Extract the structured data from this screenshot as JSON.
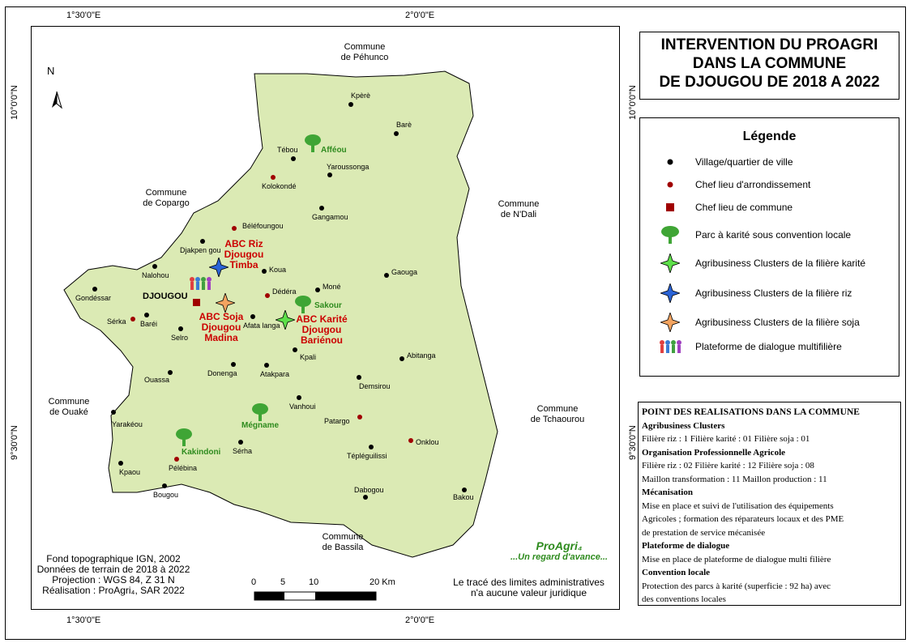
{
  "coords": {
    "top_left": "1°30'0\"E",
    "top_right": "2°0'0\"E",
    "bottom_left": "1°30'0\"E",
    "bottom_right": "2°0'0\"E",
    "left_top": "10°0'0\"N",
    "left_bottom": "9°30'0\"N",
    "right_top": "10°0'0\"N",
    "right_bottom": "9°30'0\"N"
  },
  "title": [
    "INTERVENTION DU PROAGRI",
    "DANS LA COMMUNE",
    "DE DJOUGOU DE 2018 A 2022"
  ],
  "legend": {
    "title": "Légende",
    "items": [
      {
        "label": "Village/quartier de ville",
        "icon": "village-dot"
      },
      {
        "label": "Chef lieu d'arrondissement",
        "icon": "arrondissement-dot"
      },
      {
        "label": "Chef lieu de commune",
        "icon": "commune-square"
      },
      {
        "label": "Parc à karité sous convention locale",
        "icon": "tree-icon"
      },
      {
        "label": "Agribusiness Clusters de la filière karité",
        "icon": "green-star"
      },
      {
        "label": "Agribusiness Clusters de la filière riz",
        "icon": "blue-star"
      },
      {
        "label": "Agribusiness Clusters de la filière soja",
        "icon": "orange-star"
      },
      {
        "label": "Plateforme de dialogue multifilière",
        "icon": "people-icon"
      }
    ]
  },
  "realisations": {
    "title": "POINT DES REALISATIONS DANS LA COMMUNE",
    "lines": [
      {
        "text": "Agribusiness Clusters",
        "bold": true
      },
      {
        "text": "Filière riz : 1   Filière karité : 01  Filière soja : 01",
        "bold": false
      },
      {
        "text": "Organisation Professionnelle Agricole",
        "bold": true
      },
      {
        "text": "Filière riz : 02   Filière karité : 12  Filière soja : 08",
        "bold": false
      },
      {
        "text": "Maillon transformation : 11   Maillon production : 11",
        "bold": false
      },
      {
        "text": "Mécanisation",
        "bold": true
      },
      {
        "text": "Mise en place et suivi de l'utilisation des équipements",
        "bold": false
      },
      {
        "text": "Agricoles ; formation des réparateurs locaux et des PME",
        "bold": false
      },
      {
        "text": "de prestation de service mécanisée",
        "bold": false
      },
      {
        "text": "Plateforme de dialogue",
        "bold": true
      },
      {
        "text": "Mise en place de plateforme de dialogue multi filière",
        "bold": false
      },
      {
        "text": "Convention locale",
        "bold": true
      },
      {
        "text": "Protection des parcs à karité (superficie : 92 ha) avec",
        "bold": false
      },
      {
        "text": "des conventions locales",
        "bold": false
      }
    ]
  },
  "communes": [
    {
      "id": "pehunco",
      "text": "Commune\nde Péhunco"
    },
    {
      "id": "copargo",
      "text": "Commune\nde Copargo"
    },
    {
      "id": "ndali",
      "text": "Commune\nde N'Dali"
    },
    {
      "id": "ouake",
      "text": "Commune\nde Ouaké"
    },
    {
      "id": "tchaourou",
      "text": "Commune\nde Tchaourou"
    },
    {
      "id": "bassila",
      "text": "Commune\nde Bassila"
    }
  ],
  "villages": [
    {
      "name": "Kpèrè",
      "type": "village"
    },
    {
      "name": "Barè",
      "type": "village"
    },
    {
      "name": "Tébou",
      "type": "village"
    },
    {
      "name": "Yaroussonga",
      "type": "village"
    },
    {
      "name": "Kolokondé",
      "type": "arrondissement"
    },
    {
      "name": "Gangamou",
      "type": "village"
    },
    {
      "name": "Béléfoungou",
      "type": "arrondissement"
    },
    {
      "name": "Djakpen gou",
      "type": "village"
    },
    {
      "name": "Nalohou",
      "type": "village"
    },
    {
      "name": "Koua",
      "type": "village"
    },
    {
      "name": "Gaouga",
      "type": "village"
    },
    {
      "name": "Gondéssar",
      "type": "village"
    },
    {
      "name": "Dédéra",
      "type": "arrondissement"
    },
    {
      "name": "Moné",
      "type": "village"
    },
    {
      "name": "Sérka",
      "type": "arrondissement"
    },
    {
      "name": "Baréi",
      "type": "village"
    },
    {
      "name": "Afata langa",
      "type": "village"
    },
    {
      "name": "Selro",
      "type": "village"
    },
    {
      "name": "Kpali",
      "type": "village"
    },
    {
      "name": "Abitanga",
      "type": "village"
    },
    {
      "name": "Donenga",
      "type": "village"
    },
    {
      "name": "Atakpara",
      "type": "village"
    },
    {
      "name": "Ouassa",
      "type": "village"
    },
    {
      "name": "Demsirou",
      "type": "village"
    },
    {
      "name": "Vanhoui",
      "type": "village"
    },
    {
      "name": "Patargo",
      "type": "arrondissement"
    },
    {
      "name": "Onklou",
      "type": "arrondissement"
    },
    {
      "name": "Yarakéou",
      "type": "village"
    },
    {
      "name": "Sérha",
      "type": "village"
    },
    {
      "name": "Tépléguilissi",
      "type": "village"
    },
    {
      "name": "Kpaou",
      "type": "village"
    },
    {
      "name": "Pélébina",
      "type": "arrondissement"
    },
    {
      "name": "Bougou",
      "type": "village"
    },
    {
      "name": "Dabogou",
      "type": "village"
    },
    {
      "name": "Bakou",
      "type": "village"
    }
  ],
  "town": "DJOUGOU",
  "parks": [
    "Afféou",
    "Sakour",
    "Mégname",
    "Kakindoni"
  ],
  "clusters": {
    "riz": "ABC Riz\nDjougou\nTimba",
    "soja": "ABC Soja\nDjougou\nMadina",
    "karite": "ABC Karité\nDjougou\nBariénou"
  },
  "north": "N",
  "credits": [
    "Fond topographique IGN, 2002",
    "Données de terrain de 2018 à 2022",
    "Projection : WGS 84, Z 31 N",
    "Réalisation : ProAgri₄, SAR 2022"
  ],
  "scale": {
    "labels": [
      "0",
      "5",
      "10",
      "20 Km"
    ]
  },
  "disclaimer": [
    "Le tracé des limites administratives",
    "n'a aucune valeur juridique"
  ],
  "logo": {
    "name": "ProAgri₄",
    "slogan": "...Un regard d'avance..."
  },
  "colors": {
    "region_fill": "#dbeab4",
    "label_red": "#cc0000",
    "park_green": "#2e8b1e",
    "village": "#000000",
    "arrondissement": "#a00000"
  }
}
